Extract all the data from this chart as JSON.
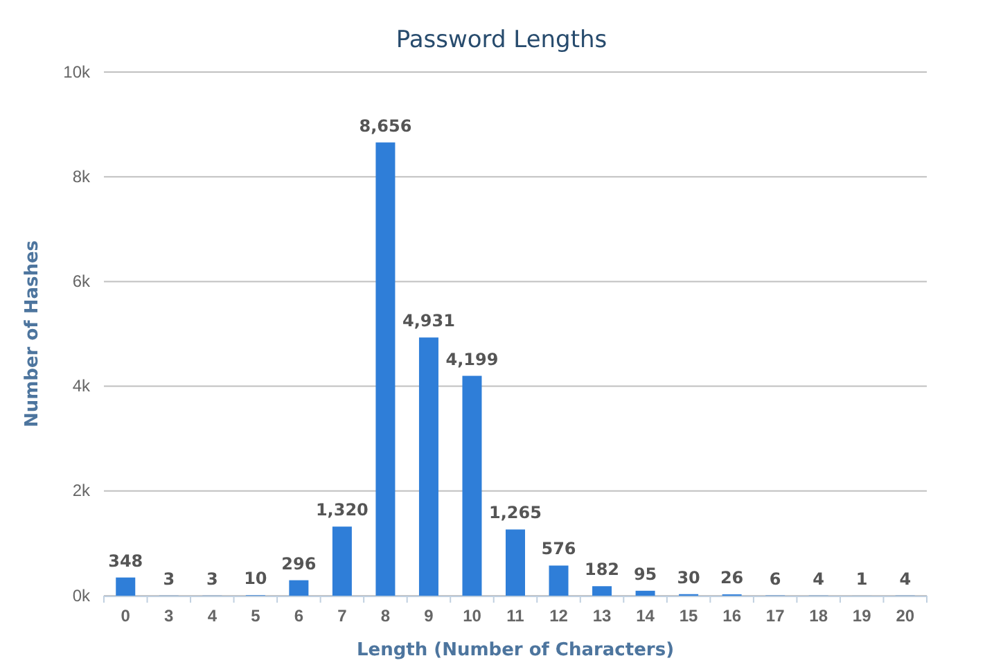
{
  "chart_data": {
    "type": "bar",
    "title": "Password Lengths",
    "xlabel": "Length (Number of Characters)",
    "ylabel": "Number of Hashes",
    "categories": [
      "0",
      "3",
      "4",
      "5",
      "6",
      "7",
      "8",
      "9",
      "10",
      "11",
      "12",
      "13",
      "14",
      "15",
      "16",
      "17",
      "18",
      "19",
      "20"
    ],
    "values": [
      348,
      3,
      3,
      10,
      296,
      1320,
      8656,
      4931,
      4199,
      1265,
      576,
      182,
      95,
      30,
      26,
      6,
      4,
      1,
      4
    ],
    "value_labels": [
      "348",
      "3",
      "3",
      "10",
      "296",
      "1,320",
      "8,656",
      "4,931",
      "4,199",
      "1,265",
      "576",
      "182",
      "95",
      "30",
      "26",
      "6",
      "4",
      "1",
      "4"
    ],
    "color": "#2f7ed8",
    "ylim": [
      0,
      10000
    ],
    "yticks": [
      {
        "value": 0,
        "label": "0k"
      },
      {
        "value": 2000,
        "label": "2k"
      },
      {
        "value": 4000,
        "label": "4k"
      },
      {
        "value": 6000,
        "label": "6k"
      },
      {
        "value": 8000,
        "label": "8k"
      },
      {
        "value": 10000,
        "label": "10k"
      }
    ],
    "grid": "y"
  }
}
